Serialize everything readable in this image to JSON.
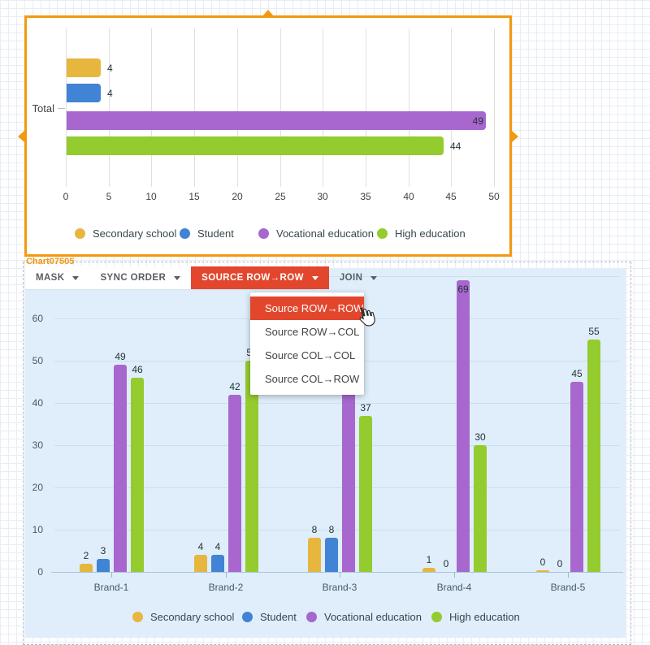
{
  "ui": {
    "widget_label": "Chart07505",
    "toolbar": [
      {
        "label": "MASK",
        "active": false
      },
      {
        "label": "SYNC ORDER",
        "active": false
      },
      {
        "label": "SOURCE ROW→ROW",
        "active": true
      },
      {
        "label": "JOIN",
        "active": false
      }
    ],
    "context_menu": [
      {
        "label": "Source ROW→ROW",
        "active": true
      },
      {
        "label": "Source ROW→COL",
        "active": false
      },
      {
        "label": "Source COL→COL",
        "active": false
      },
      {
        "label": "Source COL→ROW",
        "active": false
      }
    ],
    "icons": {
      "dropdown_caret": "caret-down",
      "cursor": "hand-pointer"
    },
    "accent_colors": {
      "selection_orange": "#F2990F",
      "active_red": "#E2472D",
      "chart_bg_blue": "#DFEEFA"
    }
  },
  "chart_data": [
    {
      "type": "bar",
      "orientation": "horizontal",
      "title": "",
      "categories": [
        "Total"
      ],
      "series": [
        {
          "name": "Secondary school",
          "color": "#E7B63E",
          "values": [
            4
          ]
        },
        {
          "name": "Student",
          "color": "#4183D4",
          "values": [
            4
          ]
        },
        {
          "name": "Vocational education",
          "color": "#A767CE",
          "values": [
            49
          ]
        },
        {
          "name": "High education",
          "color": "#94CB2F",
          "values": [
            44
          ]
        }
      ],
      "xlim": [
        0,
        50
      ],
      "x_ticks": [
        0,
        5,
        10,
        15,
        20,
        25,
        30,
        35,
        40,
        45,
        50
      ],
      "grid": true,
      "legend_position": "bottom"
    },
    {
      "type": "bar",
      "orientation": "vertical",
      "title": "",
      "categories": [
        "Brand-1",
        "Brand-2",
        "Brand-3",
        "Brand-4",
        "Brand-5"
      ],
      "series": [
        {
          "name": "Secondary school",
          "color": "#E7B63E",
          "values": [
            2,
            4,
            8,
            1,
            0
          ]
        },
        {
          "name": "Student",
          "color": "#4183D4",
          "values": [
            3,
            4,
            8,
            0,
            0
          ]
        },
        {
          "name": "Vocational education",
          "color": "#A767CE",
          "values": [
            49,
            42,
            55,
            69,
            45
          ]
        },
        {
          "name": "High education",
          "color": "#94CB2F",
          "values": [
            46,
            50,
            37,
            30,
            55
          ]
        }
      ],
      "ylim": [
        0,
        70
      ],
      "y_ticks": [
        0,
        10,
        20,
        30,
        40,
        50,
        60,
        70
      ],
      "grid": true,
      "legend_position": "bottom"
    }
  ]
}
